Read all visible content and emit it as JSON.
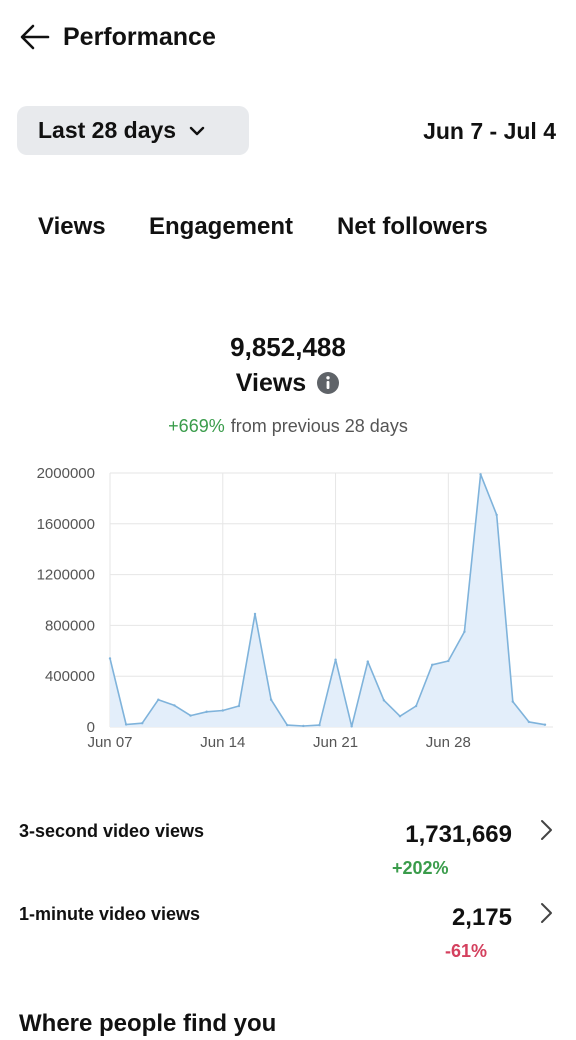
{
  "header": {
    "title": "Performance",
    "back_icon": "arrow-left-icon"
  },
  "range_selector": {
    "label": "Last 28 days",
    "icon": "chevron-down-icon"
  },
  "date_range": "Jun 7 - Jul 4",
  "tabs": [
    {
      "label": "Views",
      "active": true
    },
    {
      "label": "Engagement",
      "active": false
    },
    {
      "label": "Net followers",
      "active": false
    }
  ],
  "summary": {
    "total": "9,852,488",
    "metric_label": "Views",
    "info_icon": "info-icon",
    "change_pct": "+669%",
    "change_text": "from previous 28 days"
  },
  "chart_data": {
    "type": "area",
    "x": [
      "Jun 07",
      "Jun 08",
      "Jun 09",
      "Jun 10",
      "Jun 11",
      "Jun 12",
      "Jun 13",
      "Jun 14",
      "Jun 15",
      "Jun 16",
      "Jun 17",
      "Jun 18",
      "Jun 19",
      "Jun 20",
      "Jun 21",
      "Jun 22",
      "Jun 23",
      "Jun 24",
      "Jun 25",
      "Jun 26",
      "Jun 27",
      "Jun 28",
      "Jun 29",
      "Jun 30",
      "Jul 01",
      "Jul 02",
      "Jul 03",
      "Jul 04"
    ],
    "values": [
      540000,
      20000,
      30000,
      215000,
      170000,
      90000,
      120000,
      130000,
      165000,
      890000,
      215000,
      15000,
      8000,
      15000,
      530000,
      5000,
      515000,
      210000,
      85000,
      165000,
      490000,
      520000,
      750000,
      1990000,
      1670000,
      200000,
      40000,
      18000
    ],
    "x_tick_labels": [
      "Jun 07",
      "Jun 14",
      "Jun 21",
      "Jun 28"
    ],
    "y_tick_labels": [
      "0",
      "400000",
      "800000",
      "1200000",
      "1600000",
      "2000000"
    ],
    "ylim": [
      0,
      2000000
    ],
    "grid": true,
    "line_color": "#7fb3db",
    "fill_color": "#e3eefa"
  },
  "stats": [
    {
      "label": "3-second video views",
      "value": "1,731,669",
      "change": "+202%",
      "change_color": "#3a9c4b",
      "icon": "chevron-right-icon"
    },
    {
      "label": "1-minute video views",
      "value": "2,175",
      "change": "-61%",
      "change_color": "#d4405e",
      "icon": "chevron-right-icon"
    }
  ],
  "next_section": {
    "heading": "Where people find you"
  }
}
